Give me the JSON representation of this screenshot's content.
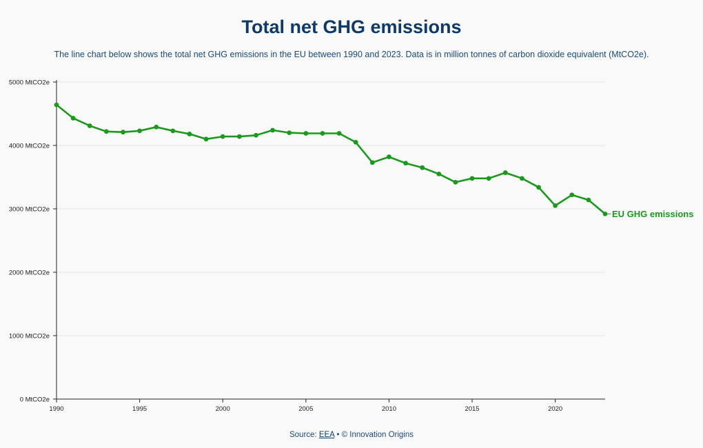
{
  "title": "Total net GHG emissions",
  "subtitle": "The line chart below shows the total net GHG emissions in the EU between 1990 and 2023. Data is in million tonnes of carbon dioxide equivalent (MtCO2e).",
  "source": {
    "prefix": "Source:",
    "link_text": "EEA",
    "suffix": "• © Innovation Origins"
  },
  "colors": {
    "series": "#1a9a1a",
    "title": "#0d3a66",
    "text": "#1a4a7a",
    "grid": "#e6e6e6",
    "axis": "#222222"
  },
  "chart_data": {
    "type": "line",
    "title": "Total net GHG emissions",
    "xlabel": "",
    "ylabel": "",
    "ylim": [
      0,
      5000
    ],
    "xlim": [
      1990,
      2023
    ],
    "grid": "horizontal",
    "x": [
      1990,
      1991,
      1992,
      1993,
      1994,
      1995,
      1996,
      1997,
      1998,
      1999,
      2000,
      2001,
      2002,
      2003,
      2004,
      2005,
      2006,
      2007,
      2008,
      2009,
      2010,
      2011,
      2012,
      2013,
      2014,
      2015,
      2016,
      2017,
      2018,
      2019,
      2020,
      2021,
      2022,
      2023
    ],
    "series": [
      {
        "name": "EU GHG emissions",
        "values": [
          4640,
          4430,
          4310,
          4220,
          4210,
          4230,
          4290,
          4230,
          4180,
          4100,
          4140,
          4140,
          4160,
          4240,
          4200,
          4190,
          4190,
          4190,
          4050,
          3730,
          3820,
          3720,
          3650,
          3550,
          3420,
          3480,
          3480,
          3570,
          3480,
          3340,
          3050,
          3220,
          3140,
          2920
        ]
      }
    ],
    "y_ticks": [
      {
        "value": 0,
        "label": "0 MtCO2e"
      },
      {
        "value": 1000,
        "label": "1000 MtCO2e"
      },
      {
        "value": 2000,
        "label": "2000 MtCO2e"
      },
      {
        "value": 3000,
        "label": "3000 MtCO2e"
      },
      {
        "value": 4000,
        "label": "4000 MtCO2e"
      },
      {
        "value": 5000,
        "label": "5000 MtCO2e"
      }
    ],
    "x_ticks": [
      {
        "value": 1990,
        "label": "1990"
      },
      {
        "value": 1995,
        "label": "1995"
      },
      {
        "value": 2000,
        "label": "2000"
      },
      {
        "value": 2005,
        "label": "2005"
      },
      {
        "value": 2010,
        "label": "2010"
      },
      {
        "value": 2015,
        "label": "2015"
      },
      {
        "value": 2020,
        "label": "2020"
      }
    ]
  }
}
